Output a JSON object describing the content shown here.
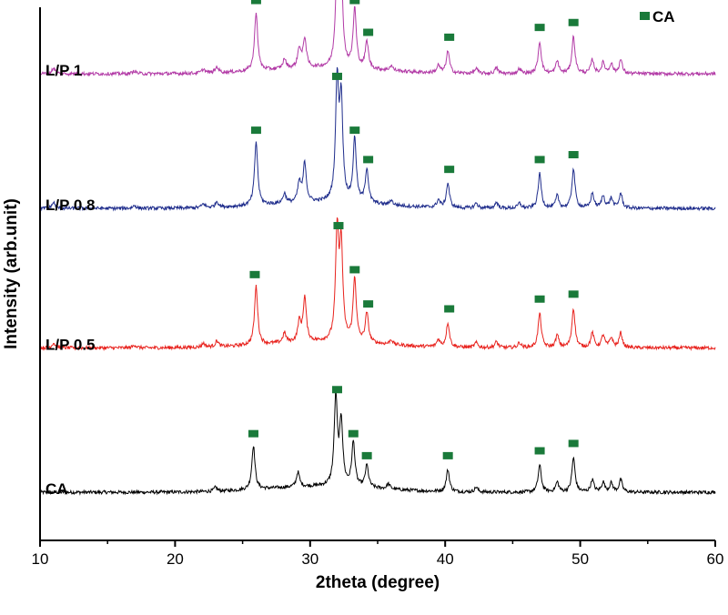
{
  "chart_data": {
    "type": "line",
    "title": "",
    "xlabel": "2theta (degree)",
    "ylabel": "Intensity (arb.unit)",
    "xlim": [
      10,
      60
    ],
    "xticks": [
      10,
      20,
      30,
      40,
      50,
      60
    ],
    "ylim": [
      0,
      1
    ],
    "grid": false,
    "legend": {
      "position": "top-right",
      "entries": [
        {
          "label": "CA",
          "marker": "square",
          "color": "#1a7a3a"
        }
      ]
    },
    "marker_color": "#1a7a3a",
    "series": [
      {
        "name": "CA",
        "color": "#000000",
        "baseline": 0.05,
        "peaks": [
          [
            23.0,
            0.008
          ],
          [
            25.8,
            0.09
          ],
          [
            29.1,
            0.03
          ],
          [
            31.9,
            0.18
          ],
          [
            32.3,
            0.13
          ],
          [
            33.2,
            0.09
          ],
          [
            34.2,
            0.045
          ],
          [
            35.8,
            0.01
          ],
          [
            40.2,
            0.045
          ],
          [
            42.3,
            0.01
          ],
          [
            47.0,
            0.055
          ],
          [
            48.3,
            0.02
          ],
          [
            49.5,
            0.07
          ],
          [
            50.9,
            0.025
          ],
          [
            51.7,
            0.02
          ],
          [
            52.3,
            0.018
          ],
          [
            53.0,
            0.025
          ]
        ],
        "markers": [
          25.8,
          32.0,
          33.2,
          34.2,
          40.2,
          47.0,
          49.5
        ]
      },
      {
        "name": "L/P 0.5",
        "color": "#e8231e",
        "baseline": 0.345,
        "peaks": [
          [
            11.0,
            0.01
          ],
          [
            17.0,
            0.006
          ],
          [
            22.1,
            0.008
          ],
          [
            23.1,
            0.012
          ],
          [
            26.0,
            0.12
          ],
          [
            28.1,
            0.02
          ],
          [
            29.2,
            0.04
          ],
          [
            29.6,
            0.09
          ],
          [
            32.0,
            0.22
          ],
          [
            32.3,
            0.19
          ],
          [
            33.3,
            0.13
          ],
          [
            34.2,
            0.06
          ],
          [
            36.0,
            0.01
          ],
          [
            39.5,
            0.015
          ],
          [
            40.2,
            0.05
          ],
          [
            42.3,
            0.01
          ],
          [
            43.8,
            0.012
          ],
          [
            45.5,
            0.01
          ],
          [
            47.0,
            0.07
          ],
          [
            48.3,
            0.025
          ],
          [
            49.5,
            0.08
          ],
          [
            50.9,
            0.03
          ],
          [
            51.7,
            0.025
          ],
          [
            52.3,
            0.02
          ],
          [
            53.0,
            0.03
          ]
        ],
        "markers": [
          25.9,
          32.1,
          33.3,
          34.3,
          40.3,
          47.0,
          49.5
        ]
      },
      {
        "name": "L/P 0.8",
        "color": "#1f2d8c",
        "baseline": 0.63,
        "peaks": [
          [
            11.0,
            0.012
          ],
          [
            17.0,
            0.006
          ],
          [
            22.1,
            0.008
          ],
          [
            23.1,
            0.012
          ],
          [
            26.0,
            0.13
          ],
          [
            28.1,
            0.02
          ],
          [
            29.2,
            0.04
          ],
          [
            29.6,
            0.08
          ],
          [
            32.0,
            0.24
          ],
          [
            32.3,
            0.2
          ],
          [
            33.3,
            0.13
          ],
          [
            34.2,
            0.07
          ],
          [
            36.0,
            0.01
          ],
          [
            39.5,
            0.015
          ],
          [
            40.2,
            0.05
          ],
          [
            42.3,
            0.01
          ],
          [
            43.8,
            0.012
          ],
          [
            45.5,
            0.01
          ],
          [
            47.0,
            0.07
          ],
          [
            48.3,
            0.025
          ],
          [
            49.5,
            0.08
          ],
          [
            50.9,
            0.03
          ],
          [
            51.7,
            0.025
          ],
          [
            52.3,
            0.02
          ],
          [
            53.0,
            0.03
          ]
        ],
        "markers": [
          26.0,
          32.0,
          33.3,
          34.3,
          40.3,
          47.0,
          49.5
        ]
      },
      {
        "name": "L/P 1",
        "color": "#b23aa6",
        "baseline": 0.905,
        "peaks": [
          [
            11.0,
            0.012
          ],
          [
            17.0,
            0.006
          ],
          [
            22.1,
            0.008
          ],
          [
            23.1,
            0.012
          ],
          [
            26.0,
            0.12
          ],
          [
            28.1,
            0.02
          ],
          [
            29.2,
            0.04
          ],
          [
            29.6,
            0.06
          ],
          [
            32.0,
            0.2
          ],
          [
            32.3,
            0.18
          ],
          [
            33.3,
            0.12
          ],
          [
            34.2,
            0.055
          ],
          [
            36.0,
            0.01
          ],
          [
            39.5,
            0.015
          ],
          [
            40.2,
            0.045
          ],
          [
            42.3,
            0.01
          ],
          [
            43.8,
            0.012
          ],
          [
            45.5,
            0.01
          ],
          [
            47.0,
            0.065
          ],
          [
            48.3,
            0.025
          ],
          [
            49.5,
            0.075
          ],
          [
            50.9,
            0.028
          ],
          [
            51.7,
            0.022
          ],
          [
            52.3,
            0.02
          ],
          [
            53.0,
            0.028
          ]
        ],
        "markers": [
          26.0,
          32.0,
          33.3,
          34.3,
          40.3,
          47.0,
          49.5
        ]
      }
    ]
  }
}
